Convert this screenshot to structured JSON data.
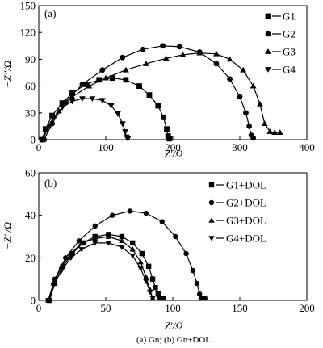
{
  "caption": "(a) Gn; (b) Gn+DOL",
  "chart_data": [
    {
      "type": "scatter",
      "panel_label": "(a)",
      "xlabel": "Z′/Ω",
      "ylabel": "−Z″/Ω",
      "xlim": [
        0,
        400
      ],
      "ylim": [
        0,
        150
      ],
      "xticks": [
        0,
        100,
        200,
        300,
        400
      ],
      "yticks": [
        0,
        30,
        60,
        90,
        120,
        150
      ],
      "grid": false,
      "legend_position": "top-right",
      "series": [
        {
          "name": "G1",
          "marker": "square",
          "x": [
            5,
            10,
            20,
            35,
            50,
            70,
            90,
            110,
            130,
            150,
            165,
            178,
            186,
            191,
            193,
            195
          ],
          "y": [
            0,
            12,
            27,
            41,
            52,
            62,
            67,
            69,
            67,
            60,
            50,
            38,
            25,
            12,
            4,
            1
          ]
        },
        {
          "name": "G2",
          "marker": "circle",
          "x": [
            8,
            20,
            40,
            65,
            95,
            125,
            155,
            185,
            210,
            240,
            265,
            285,
            300,
            309,
            314,
            317,
            320
          ],
          "y": [
            0,
            18,
            42,
            62,
            78,
            92,
            101,
            105,
            104,
            98,
            85,
            68,
            48,
            30,
            15,
            5,
            2
          ]
        },
        {
          "name": "G3",
          "marker": "triangle-up",
          "x": [
            6,
            15,
            30,
            50,
            75,
            100,
            130,
            160,
            190,
            215,
            240,
            265,
            285,
            305,
            320,
            330,
            337,
            345,
            352,
            360
          ],
          "y": [
            0,
            15,
            32,
            48,
            60,
            69,
            78,
            85,
            91,
            95,
            97,
            96,
            90,
            78,
            60,
            40,
            18,
            9,
            8,
            8
          ]
        },
        {
          "name": "G4",
          "marker": "triangle-down",
          "x": [
            5,
            12,
            22,
            35,
            50,
            65,
            80,
            95,
            108,
            118,
            125,
            129,
            131,
            133
          ],
          "y": [
            0,
            12,
            25,
            36,
            43,
            46,
            46,
            44,
            38,
            29,
            18,
            9,
            3,
            1
          ]
        }
      ]
    },
    {
      "type": "scatter",
      "panel_label": "(b)",
      "xlabel": "Z′/Ω",
      "ylabel": "−Z″/Ω",
      "xlim": [
        0,
        200
      ],
      "ylim": [
        0,
        60
      ],
      "xticks": [
        0,
        50,
        100,
        150,
        200
      ],
      "yticks": [
        0,
        20,
        40,
        60
      ],
      "grid": false,
      "legend_position": "top-right",
      "series": [
        {
          "name": "G1+DOL",
          "marker": "square",
          "x": [
            8,
            12,
            18,
            25,
            33,
            42,
            52,
            62,
            70,
            77,
            82,
            85,
            87,
            89,
            90,
            93
          ],
          "y": [
            0,
            8,
            16,
            22,
            27,
            30,
            31,
            30,
            27,
            22,
            16,
            10,
            6,
            3,
            1,
            1
          ]
        },
        {
          "name": "G2+DOL",
          "marker": "circle",
          "x": [
            8,
            12,
            20,
            30,
            42,
            55,
            68,
            80,
            92,
            102,
            110,
            115,
            118,
            120,
            121,
            124
          ],
          "y": [
            0,
            10,
            20,
            28,
            35,
            40,
            42,
            41,
            37,
            30,
            22,
            14,
            8,
            3,
            1,
            1
          ]
        },
        {
          "name": "G3+DOL",
          "marker": "triangle-up",
          "x": [
            7,
            11,
            17,
            24,
            32,
            42,
            52,
            62,
            70,
            76,
            80,
            83,
            85
          ],
          "y": [
            0,
            8,
            16,
            22,
            27,
            29,
            30,
            28,
            24,
            18,
            11,
            5,
            1
          ]
        },
        {
          "name": "G4+DOL",
          "marker": "triangle-down",
          "x": [
            7,
            11,
            17,
            24,
            32,
            42,
            52,
            62,
            70,
            76,
            80,
            83,
            85
          ],
          "y": [
            0,
            7,
            14,
            20,
            24,
            27,
            27,
            25,
            21,
            15,
            9,
            4,
            1
          ]
        }
      ]
    }
  ]
}
